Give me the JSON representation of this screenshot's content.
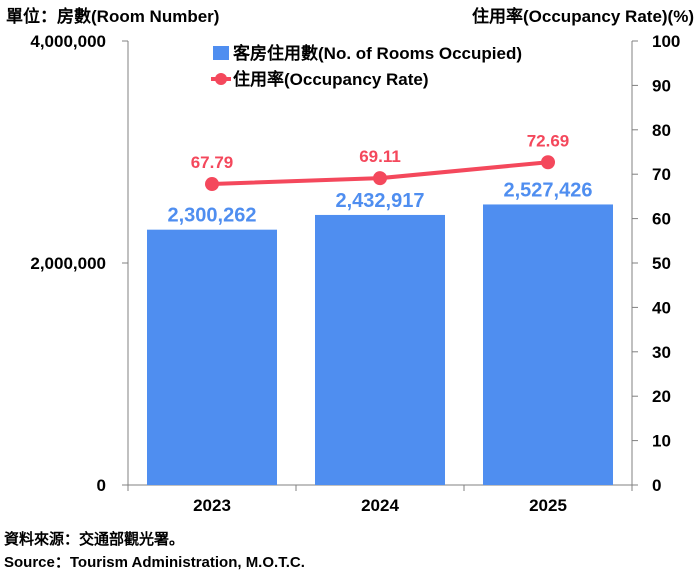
{
  "chart_data": {
    "type": "bar",
    "left_axis_title": "單位：房數(Room Number)",
    "right_axis_title": "住用率(Occupancy Rate)(%)",
    "categories": [
      "2023",
      "2024",
      "2025"
    ],
    "series": [
      {
        "name": "客房住用數(No. of Rooms Occupied)",
        "type": "bar",
        "axis": "left",
        "values": [
          2300262,
          2432917,
          2527426
        ],
        "labels": [
          "2,300,262",
          "2,432,917",
          "2,527,426"
        ],
        "color": "#4f8ef0",
        "label_color": "#4f8ef0"
      },
      {
        "name": "住用率(Occupancy Rate)",
        "type": "line",
        "axis": "right",
        "values": [
          67.79,
          69.11,
          72.69
        ],
        "labels": [
          "67.79",
          "69.11",
          "72.69"
        ],
        "color": "#f4485c",
        "label_color": "#f4485c"
      }
    ],
    "left_axis": {
      "min": 0,
      "max": 4000000,
      "ticks": [
        0,
        2000000,
        4000000
      ],
      "tick_labels": [
        "0",
        "2,000,000",
        "4,000,000"
      ]
    },
    "right_axis": {
      "min": 0,
      "max": 100,
      "ticks": [
        0,
        10,
        20,
        30,
        40,
        50,
        60,
        70,
        80,
        90,
        100
      ],
      "tick_labels": [
        "0",
        "10",
        "20",
        "30",
        "40",
        "50",
        "60",
        "70",
        "80",
        "90",
        "100"
      ]
    },
    "legend_position": "top-center",
    "grid": false
  },
  "source": {
    "zh": "資料來源：交通部觀光署。",
    "en": "Source：Tourism Administration, M.O.T.C."
  }
}
